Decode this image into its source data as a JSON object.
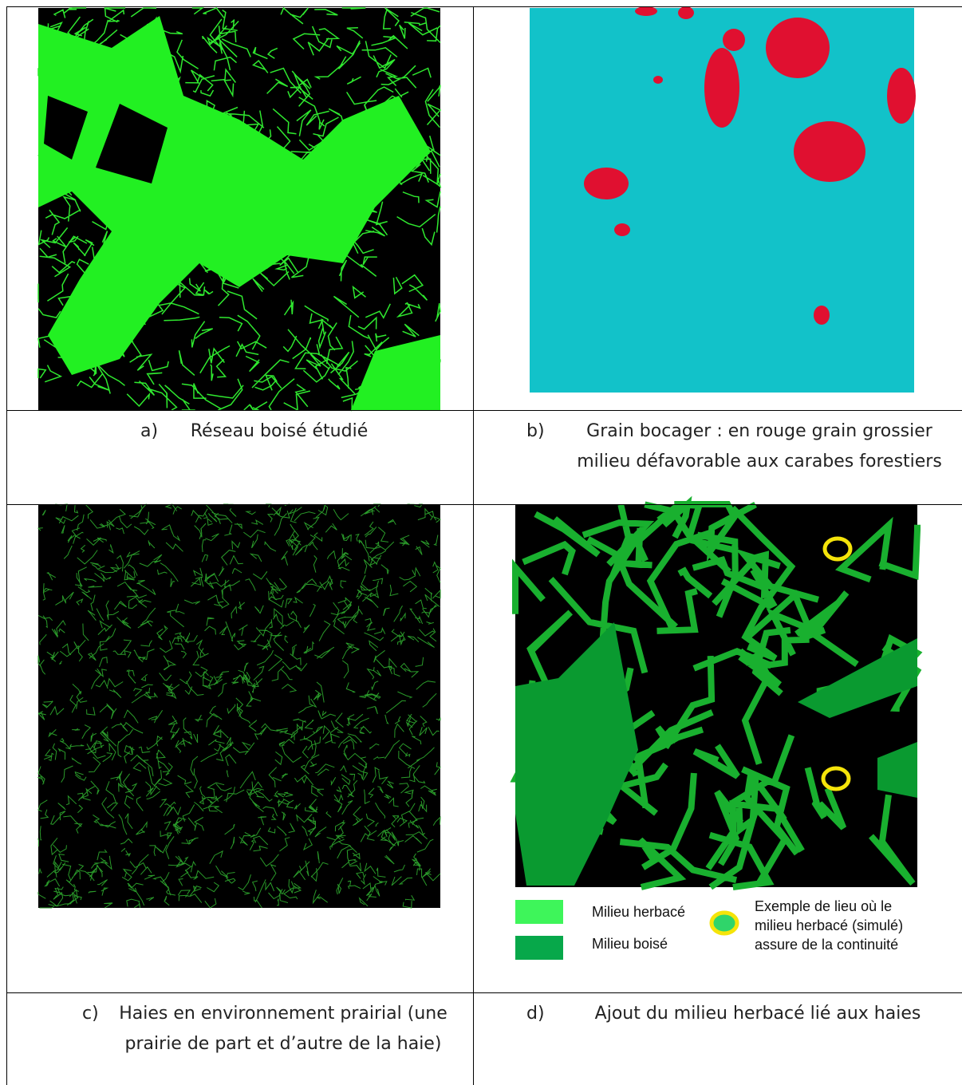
{
  "figures": [
    {
      "marker": "a)",
      "caption": "Réseau boisé étudié"
    },
    {
      "marker": "b)",
      "caption": "Grain bocager : en rouge grain grossier milieu défavorable aux carabes forestiers"
    },
    {
      "marker": "c)",
      "caption": "Haies en environnement prairial (une prairie de part et d’autre de la haie)"
    },
    {
      "marker": "d)",
      "caption": "Ajout du milieu herbacé lié aux haies"
    }
  ],
  "legend": {
    "herbaceous": "Milieu herbacé",
    "wooded": "Milieu boisé",
    "example": "Exemple de lieu où le milieu herbacé (simulé) assure de la continuité"
  }
}
